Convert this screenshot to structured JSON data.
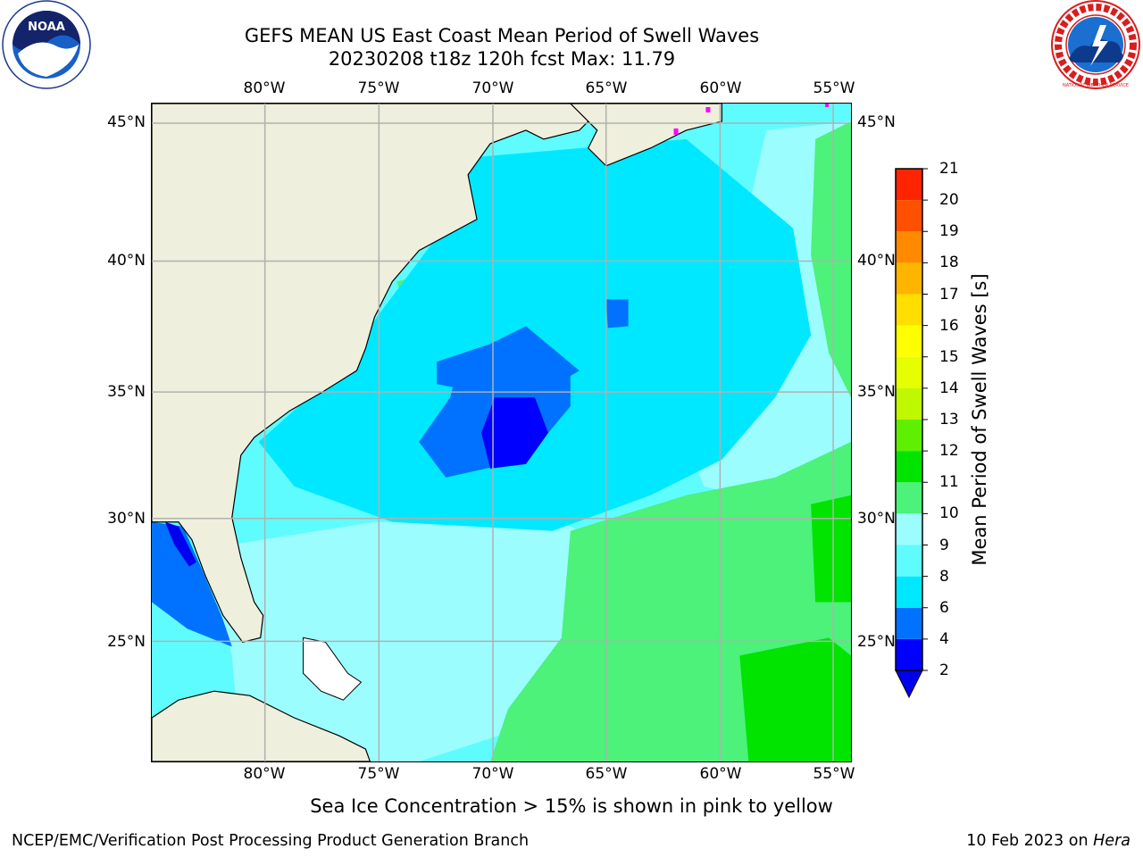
{
  "title": {
    "line1": "GEFS MEAN US East Coast Mean Period of Swell Waves",
    "line2": "20230208 t18z 120h fcst   Max: 11.79"
  },
  "axes": {
    "lon_labels": [
      "80°W",
      "75°W",
      "70°W",
      "65°W",
      "60°W",
      "55°W"
    ],
    "lat_labels": [
      "45°N",
      "40°N",
      "35°N",
      "30°N",
      "25°N"
    ]
  },
  "colorbar": {
    "title": "Mean Period of Swell Waves [s]",
    "levels": [
      "2",
      "4",
      "6",
      "8",
      "9",
      "10",
      "11",
      "12",
      "13",
      "14",
      "15",
      "16",
      "17",
      "18",
      "19",
      "20",
      "21"
    ],
    "colors": [
      "#0000ff",
      "#0072ff",
      "#00e8ff",
      "#5ffcff",
      "#9cfdff",
      "#4cf27a",
      "#00e400",
      "#5ef000",
      "#bff800",
      "#e6ff00",
      "#ffff00",
      "#ffde00",
      "#ffb400",
      "#ff8a00",
      "#ff5000",
      "#ff2400"
    ],
    "under_color": "#0000ee"
  },
  "map_colors": {
    "land": "#efefdd",
    "coast": "#000000",
    "grid": "#b0b0b0",
    "ice_magenta": "#ff00ff"
  },
  "map_region": {
    "lon_range": [
      -85,
      -54.2
    ],
    "lat_range": [
      20.5,
      45.8
    ]
  },
  "note": "Sea Ice Concentration > 15% is shown in pink to yellow",
  "footer": {
    "credit": "NCEP/EMC/Verification Post Processing Product Generation Branch",
    "date": "10 Feb 2023 on",
    "host": "Hera"
  },
  "logos": {
    "noaa_text": "NOAA",
    "nws_text": "NATIONAL WEATHER SERVICE"
  }
}
